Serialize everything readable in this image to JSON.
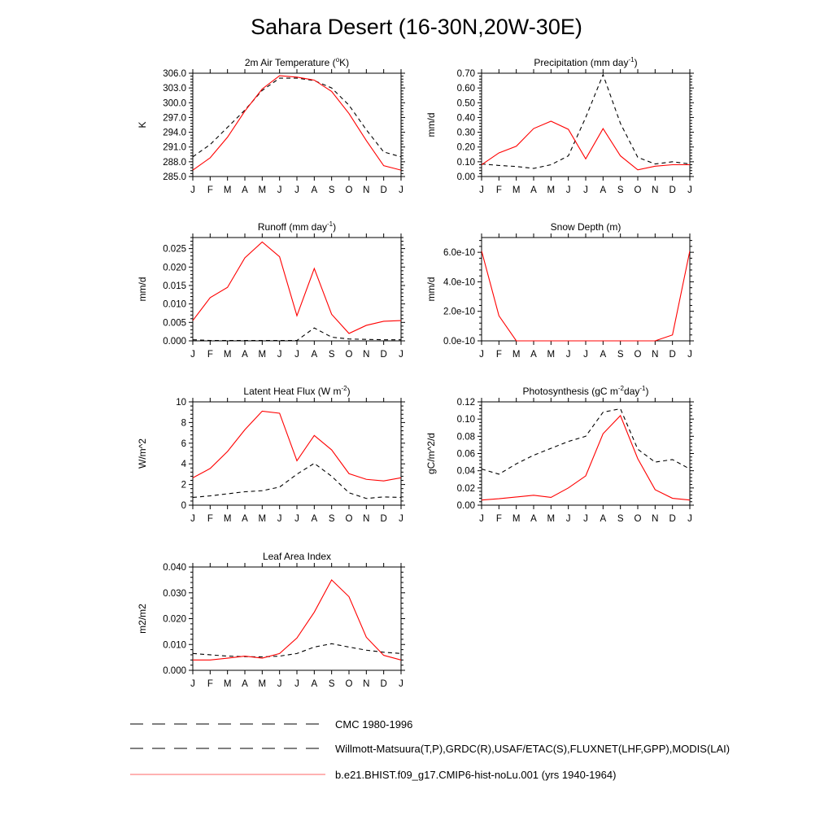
{
  "title": "Sahara Desert (16-30N,20W-30E)",
  "months": [
    "J",
    "F",
    "M",
    "A",
    "M",
    "J",
    "J",
    "A",
    "S",
    "O",
    "N",
    "D",
    "J"
  ],
  "colors": {
    "obs": "#000000",
    "model": "#ff0000"
  },
  "legend": [
    {
      "label": "CMC 1980-1996",
      "style": "dashed",
      "color": "#000000"
    },
    {
      "label": "Willmott-Matsuura(T,P),GRDC(R),USAF/ETAC(S),FLUXNET(LHF,GPP),MODIS(LAI)",
      "style": "dashed",
      "color": "#000000"
    },
    {
      "label": "b.e21.BHIST.f09_g17.CMIP6-hist-noLu.001 (yrs 1940-1964)",
      "style": "solid",
      "color": "#ff0000"
    }
  ],
  "chart_data": [
    {
      "type": "line",
      "title": "2m Air Temperature (",
      "title_sup": "o",
      "title_after": "K)",
      "ylabel": "K",
      "ylim": [
        285.0,
        306.0
      ],
      "yticks": [
        285.0,
        288.0,
        291.0,
        294.0,
        297.0,
        300.0,
        303.0,
        306.0
      ],
      "tick_labels": [
        "285.0",
        "288.0",
        "291.0",
        "294.0",
        "297.0",
        "300.0",
        "303.0",
        "306.0"
      ],
      "series": [
        {
          "role": "obs",
          "values": [
            289.0,
            291.5,
            295.0,
            298.5,
            302.5,
            305.0,
            305.0,
            304.5,
            303.0,
            299.5,
            294.5,
            290.0,
            289.0
          ]
        },
        {
          "role": "model",
          "values": [
            286.3,
            288.8,
            293.0,
            298.3,
            302.8,
            305.5,
            305.2,
            304.6,
            302.3,
            297.8,
            292.3,
            287.2,
            286.3
          ]
        }
      ]
    },
    {
      "type": "line",
      "title": "Precipitation (mm day",
      "title_sup": "-1",
      "title_after": ")",
      "ylabel": "mm/d",
      "ylim": [
        0.0,
        0.7
      ],
      "yticks": [
        0.0,
        0.1,
        0.2,
        0.3,
        0.4,
        0.5,
        0.6,
        0.7
      ],
      "tick_labels": [
        "0.00",
        "0.10",
        "0.20",
        "0.30",
        "0.40",
        "0.50",
        "0.60",
        "0.70"
      ],
      "series": [
        {
          "role": "obs",
          "values": [
            0.085,
            0.075,
            0.068,
            0.055,
            0.08,
            0.14,
            0.4,
            0.69,
            0.36,
            0.13,
            0.085,
            0.1,
            0.085
          ]
        },
        {
          "role": "model",
          "values": [
            0.08,
            0.16,
            0.205,
            0.325,
            0.375,
            0.32,
            0.12,
            0.325,
            0.14,
            0.045,
            0.07,
            0.08,
            0.08
          ]
        }
      ]
    },
    {
      "type": "line",
      "title": "Runoff (mm day",
      "title_sup": "-1",
      "title_after": ")",
      "ylabel": "mm/d",
      "ylim": [
        0.0,
        0.028
      ],
      "yticks": [
        0.0,
        0.005,
        0.01,
        0.015,
        0.02,
        0.025
      ],
      "tick_labels": [
        "0.000",
        "0.005",
        "0.010",
        "0.015",
        "0.020",
        "0.025"
      ],
      "series": [
        {
          "role": "obs",
          "values": [
            0.0003,
            0.0001,
            0.0001,
            0.0001,
            0.0001,
            0.0001,
            0.0001,
            0.0035,
            0.001,
            0.0005,
            0.0004,
            0.0003,
            0.0003
          ]
        },
        {
          "role": "model",
          "values": [
            0.0055,
            0.0117,
            0.0145,
            0.0225,
            0.0268,
            0.0228,
            0.0068,
            0.0196,
            0.0072,
            0.002,
            0.0042,
            0.0053,
            0.0055
          ]
        }
      ]
    },
    {
      "type": "line",
      "title": "Snow Depth (m)",
      "title_sup": "",
      "title_after": "",
      "ylabel": "mm/d",
      "ylim": [
        0.0,
        7e-10
      ],
      "yticks": [
        0.0,
        2e-10,
        4e-10,
        6e-10
      ],
      "tick_labels": [
        "0.0e-10",
        "2.0e-10",
        "4.0e-10",
        "6.0e-10"
      ],
      "series": [
        {
          "role": "obs",
          "values": [
            0,
            0,
            0,
            0,
            0,
            0,
            0,
            0,
            0,
            0,
            0,
            0,
            0
          ]
        },
        {
          "role": "model",
          "values": [
            6.1e-10,
            1.7e-10,
            0,
            0,
            0,
            0,
            0,
            0,
            0,
            0,
            0,
            4e-11,
            6.1e-10
          ]
        }
      ]
    },
    {
      "type": "line",
      "title": "Latent Heat Flux (W m",
      "title_sup": "-2",
      "title_after": ")",
      "ylabel": "W/m^2",
      "ylim": [
        0,
        10
      ],
      "yticks": [
        0,
        2,
        4,
        6,
        8,
        10
      ],
      "tick_labels": [
        "0",
        "2",
        "4",
        "6",
        "8",
        "10"
      ],
      "series": [
        {
          "role": "obs",
          "values": [
            0.75,
            0.9,
            1.1,
            1.3,
            1.4,
            1.75,
            3.0,
            4.05,
            2.8,
            1.2,
            0.65,
            0.8,
            0.75
          ]
        },
        {
          "role": "model",
          "values": [
            2.65,
            3.55,
            5.2,
            7.3,
            9.1,
            8.9,
            4.3,
            6.75,
            5.35,
            3.05,
            2.5,
            2.35,
            2.65
          ]
        }
      ]
    },
    {
      "type": "line",
      "title": "Photosynthesis (gC m",
      "title_sup": "-2",
      "title_after": "day",
      "title_sup2": "-1",
      "title_after2": ")",
      "ylabel": "gC/m^2/d",
      "ylim": [
        0.0,
        0.12
      ],
      "yticks": [
        0.0,
        0.02,
        0.04,
        0.06,
        0.08,
        0.1,
        0.12
      ],
      "tick_labels": [
        "0.00",
        "0.02",
        "0.04",
        "0.06",
        "0.08",
        "0.10",
        "0.12"
      ],
      "series": [
        {
          "role": "obs",
          "values": [
            0.042,
            0.036,
            0.048,
            0.058,
            0.066,
            0.074,
            0.08,
            0.108,
            0.112,
            0.065,
            0.05,
            0.053,
            0.042
          ]
        },
        {
          "role": "model",
          "values": [
            0.006,
            0.0075,
            0.0095,
            0.0115,
            0.009,
            0.02,
            0.034,
            0.083,
            0.104,
            0.054,
            0.018,
            0.008,
            0.006
          ]
        }
      ]
    },
    {
      "type": "line",
      "title": "Leaf Area Index",
      "title_sup": "",
      "title_after": "",
      "ylabel": "m2/m2",
      "ylim": [
        0.0,
        0.04
      ],
      "yticks": [
        0.0,
        0.01,
        0.02,
        0.03,
        0.04
      ],
      "tick_labels": [
        "0.000",
        "0.010",
        "0.020",
        "0.030",
        "0.040"
      ],
      "series": [
        {
          "role": "obs",
          "values": [
            0.0065,
            0.006,
            0.0055,
            0.0053,
            0.0052,
            0.0055,
            0.0065,
            0.009,
            0.0103,
            0.009,
            0.0078,
            0.007,
            0.0065
          ]
        },
        {
          "role": "model",
          "values": [
            0.004,
            0.004,
            0.0047,
            0.0055,
            0.0047,
            0.0065,
            0.0125,
            0.0225,
            0.035,
            0.0285,
            0.0128,
            0.0058,
            0.004
          ]
        }
      ]
    }
  ]
}
